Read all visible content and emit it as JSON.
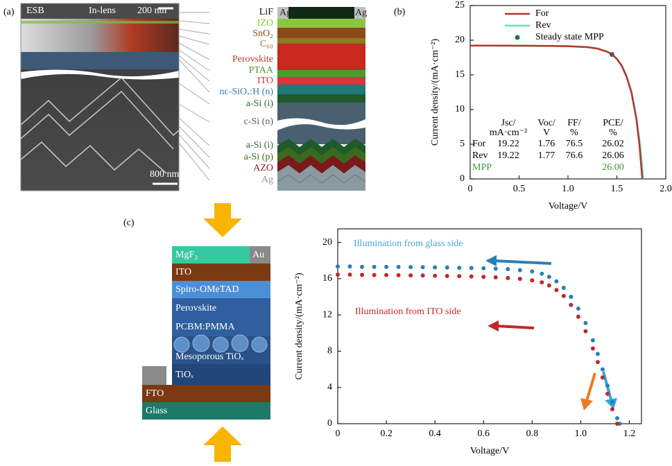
{
  "panel_labels": [
    "(a)",
    "(b)",
    "(c)"
  ],
  "panel_a": {
    "image_labels": [
      "ESB",
      "In-lens",
      "200 nm",
      "800 nm"
    ],
    "contact_labels": [
      "Ag",
      "Ag"
    ],
    "layers": [
      {
        "label": "LiF",
        "color": "#111111"
      },
      {
        "label": "IZO",
        "color": "#8cc63f"
      },
      {
        "label": "SnO₂",
        "color": "#8b4a1c"
      },
      {
        "label": "C₆₀",
        "color": "#8a7a20"
      },
      {
        "label": "Perovskite",
        "color": "#c0392b"
      },
      {
        "label": "PTAA",
        "color": "#4e9a2a"
      },
      {
        "label": "ITO",
        "color": "#e0303a"
      },
      {
        "label": "nc-SiOₓ:H (n)",
        "color": "#3a7ab0"
      },
      {
        "label": "a-Si (i)",
        "color": "#2e6b2e"
      },
      {
        "label": "c-Si (n)",
        "color": "#4a6070"
      },
      {
        "label": "a-Si (i)",
        "color": "#2e6b2e"
      },
      {
        "label": "a-Si (p)",
        "color": "#3a6a1e"
      },
      {
        "label": "AZO",
        "color": "#8b1a1a"
      },
      {
        "label": "Ag",
        "color": "#8a9aa0"
      }
    ]
  },
  "panel_c_stack": {
    "contact": "Au",
    "layers": [
      "MgF₂",
      "ITO",
      "Spiro-OMeTAD",
      "Perovskite",
      "PCBM:PMMA",
      "Mesoporous TiOₓ",
      "TiOₓ",
      "FTO",
      "Glass"
    ]
  },
  "chart_data": [
    {
      "type": "line",
      "x_label": "Voltage/V",
      "y_label": "Current density/(mA·cm⁻²)",
      "xlim": [
        0,
        2
      ],
      "ylim": [
        0,
        25
      ],
      "xticks": [
        0,
        0.5,
        {
          "value": 1,
          "label": "1.0"
        },
        1.5,
        {
          "value": 2,
          "label": "2.0"
        }
      ],
      "yticks": [
        0,
        5,
        10,
        15,
        20,
        25
      ],
      "legend": "top-right",
      "series": [
        {
          "name": "For",
          "color": "#b5352b",
          "x": [
            0,
            0.2,
            0.4,
            0.6,
            0.8,
            1.0,
            1.2,
            1.3,
            1.4,
            1.45,
            1.5,
            1.55,
            1.6,
            1.65,
            1.7,
            1.73,
            1.76
          ],
          "values": [
            19.22,
            19.22,
            19.21,
            19.2,
            19.18,
            19.14,
            19.0,
            18.8,
            18.35,
            17.95,
            17.3,
            16.3,
            14.7,
            12.4,
            8.6,
            5.0,
            0
          ]
        },
        {
          "name": "Rev",
          "color": "#5ee3b4",
          "x": [
            0,
            0.2,
            0.4,
            0.6,
            0.8,
            1.0,
            1.2,
            1.3,
            1.4,
            1.45,
            1.5,
            1.55,
            1.6,
            1.65,
            1.7,
            1.74,
            1.77
          ],
          "values": [
            19.22,
            19.22,
            19.21,
            19.2,
            19.18,
            19.14,
            19.0,
            18.8,
            18.37,
            17.98,
            17.35,
            16.4,
            14.85,
            12.6,
            8.9,
            4.7,
            0
          ]
        },
        {
          "name": "Steady state MPP",
          "color": "#1d6e5c",
          "marker": "circle",
          "x": [
            1.45
          ],
          "values": [
            17.95
          ]
        }
      ],
      "table": {
        "header": [
          [
            "Jsc/",
            "mA·cm⁻²"
          ],
          [
            "Voc/",
            "V"
          ],
          [
            "FF/",
            "%"
          ],
          [
            "PCE/",
            "%"
          ]
        ],
        "rows": [
          [
            "For",
            "19.22",
            "1.76",
            "76.5",
            "26.02"
          ],
          [
            "Rev",
            "19.22",
            "1.77",
            "76.6",
            "26.06"
          ]
        ],
        "mpp_row": [
          "MPP",
          "26.00"
        ],
        "mpp_color": "#3a9a3a"
      }
    },
    {
      "type": "scatter",
      "x_label": "Voltage/V",
      "y_label": "Current density/(mA·cm⁻²)",
      "xlim": [
        0,
        1.25
      ],
      "ylim": [
        0,
        21.5
      ],
      "xticks": [
        0,
        0.2,
        0.4,
        0.6,
        0.8,
        {
          "value": 1,
          "label": "1.0"
        },
        1.2
      ],
      "yticks": [
        0,
        4,
        8,
        12,
        16,
        20
      ],
      "series": [
        {
          "name": "Illumination from glass side",
          "color": "#2a7fb8",
          "label_color": "#4ba3d6",
          "x": [
            0,
            0.05,
            0.1,
            0.15,
            0.2,
            0.25,
            0.3,
            0.35,
            0.4,
            0.45,
            0.5,
            0.55,
            0.6,
            0.65,
            0.7,
            0.75,
            0.8,
            0.84,
            0.87,
            0.9,
            0.93,
            0.96,
            0.99,
            1.02,
            1.05,
            1.07,
            1.09,
            1.11,
            1.13,
            1.15,
            1.16
          ],
          "values": [
            17.35,
            17.35,
            17.3,
            17.3,
            17.3,
            17.3,
            17.28,
            17.27,
            17.25,
            17.23,
            17.2,
            17.18,
            17.15,
            17.1,
            17.05,
            16.95,
            16.8,
            16.55,
            16.2,
            15.7,
            15.0,
            14.0,
            12.7,
            11.1,
            9.2,
            7.7,
            6.0,
            4.2,
            2.4,
            0.6,
            0
          ]
        },
        {
          "name": "Illumination from ITO side",
          "color": "#c0282a",
          "label_color": "#c8282a",
          "x": [
            0,
            0.05,
            0.1,
            0.15,
            0.2,
            0.25,
            0.3,
            0.35,
            0.4,
            0.45,
            0.5,
            0.55,
            0.6,
            0.65,
            0.7,
            0.75,
            0.8,
            0.84,
            0.87,
            0.9,
            0.93,
            0.96,
            0.99,
            1.02,
            1.05,
            1.07,
            1.09,
            1.11,
            1.13,
            1.15
          ],
          "values": [
            16.45,
            16.45,
            16.42,
            16.4,
            16.4,
            16.38,
            16.36,
            16.35,
            16.33,
            16.3,
            16.28,
            16.25,
            16.2,
            16.15,
            16.08,
            15.98,
            15.82,
            15.6,
            15.25,
            14.75,
            14.1,
            13.1,
            11.8,
            10.2,
            8.3,
            6.8,
            5.1,
            3.3,
            1.6,
            0
          ]
        }
      ]
    }
  ]
}
